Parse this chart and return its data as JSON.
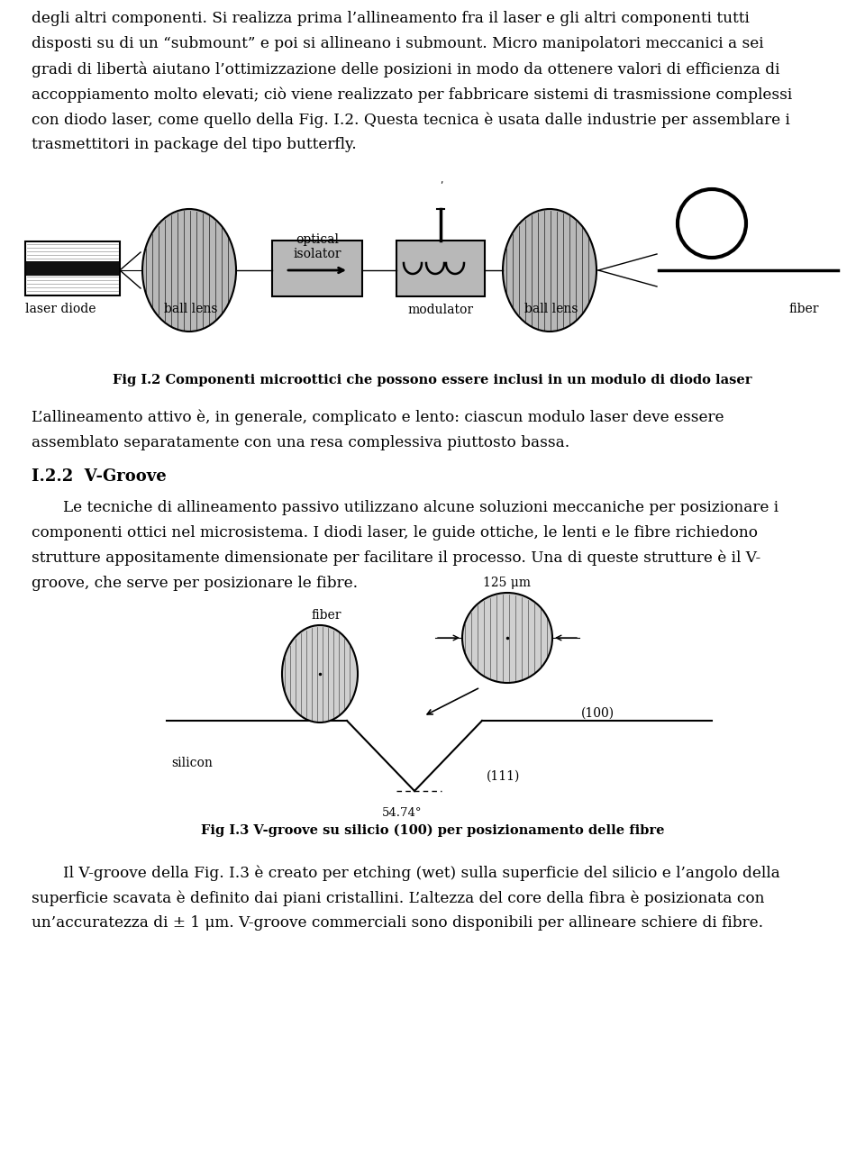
{
  "bg_color": "#ffffff",
  "text_color": "#000000",
  "fig_width": 9.6,
  "fig_height": 12.91,
  "paragraph1": "degli altri componenti. Si realizza prima l’allineamento fra il laser e gli altri componenti tutti",
  "paragraph1b": "disposti su di un “submount” e poi si allineano i submount. Micro manipolatori meccanici a sei",
  "paragraph1c": "gradi di libertà aiutano l’ottimizzazione delle posizioni in modo da ottenere valori di efficienza di",
  "paragraph1d": "accoppiamento molto elevati; ciò viene realizzato per fabbricare sistemi di trasmissione complessi",
  "paragraph1e": "con diodo laser, come quello della Fig. I.2. Questa tecnica è usata dalle industrie per assemblare i",
  "paragraph1f": "trasmettitori in package del tipo butterfly.",
  "fig2_caption": "Fig I.2 Componenti microottici che possono essere inclusi in un modulo di diodo laser",
  "label_laser_diode": "laser diode",
  "label_ball_lens1": "ball lens",
  "label_optical_isolator": "optical\nisolator",
  "label_modulator": "modulator",
  "label_ball_lens2": "ball lens",
  "label_fiber": "fiber",
  "paragraph2a": "L’allineamento attivo è, in generale, complicato e lento: ciascun modulo laser deve essere",
  "paragraph2b": "assemblato separatamente con una resa complessiva piuttosto bassa.",
  "section_title": "I.2.2  V-Groove",
  "paragraph3a": "Le tecniche di allineamento passivo utilizzano alcune soluzioni meccaniche per posizionare i",
  "paragraph3b": "componenti ottici nel microsistema. I diodi laser, le guide ottiche, le lenti e le fibre richiedono",
  "paragraph3c": "strutture appositamente dimensionate per facilitare il processo. Una di queste strutture è il V-",
  "paragraph3d": "groove, che serve per posizionare le fibre.",
  "fig3_caption": "Fig I.3 V-groove su silicio (100) per posizionamento delle fibre",
  "label_fiber2": "fiber",
  "label_silicon": "silicon",
  "label_125um": "125 μm",
  "label_100": "(100)",
  "label_111": "(111)",
  "label_angle": "54.74°",
  "paragraph4a": "Il V-groove della Fig. I.3 è creato per etching (wet) sulla superficie del silicio e l’angolo della",
  "paragraph4b": "superficie scavata è definito dai piani cristallini. L’altezza del core della fibra è posizionata con",
  "paragraph4c": "un’accuratezza di ± 1 μm. V-groove commerciali sono disponibili per allineare schiere di fibre."
}
